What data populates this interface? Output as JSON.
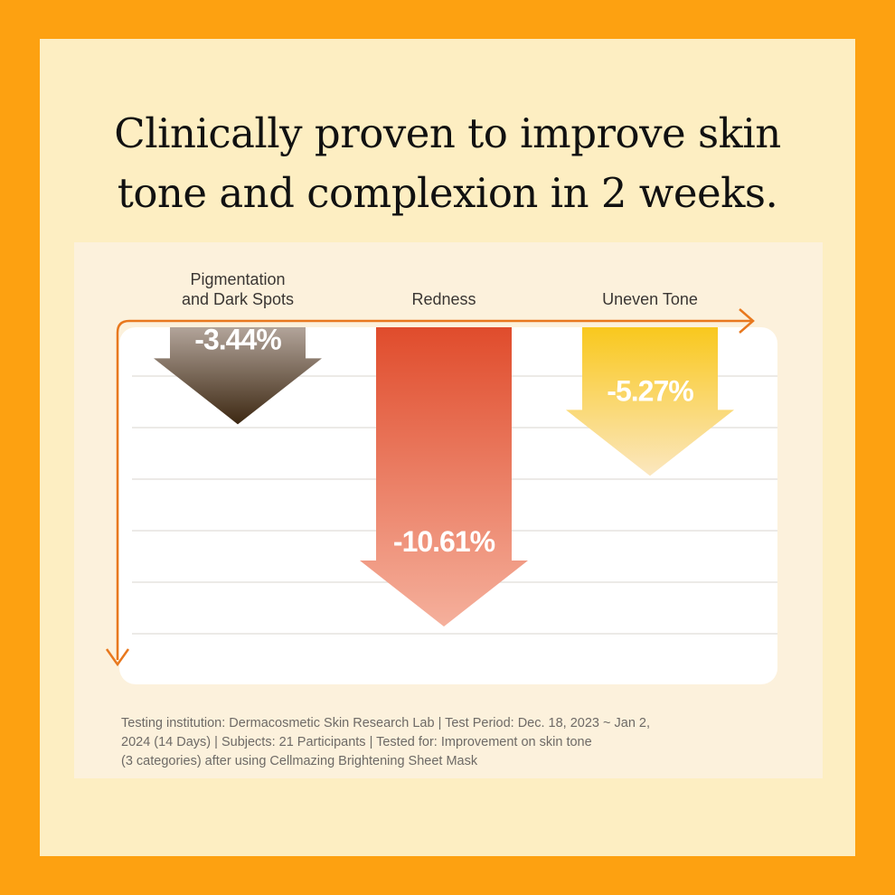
{
  "headline": {
    "line1": "Clinically proven to improve skin",
    "line2": "tone and complexion in 2 weeks."
  },
  "chart_data": {
    "type": "bar",
    "categories": [
      "Pigmentation and Dark Spots",
      "Redness",
      "Uneven Tone"
    ],
    "category_lines": [
      [
        "Pigmentation",
        "and Dark Spots"
      ],
      [
        "Redness"
      ],
      [
        "Uneven Tone"
      ]
    ],
    "values": [
      -3.44,
      -10.61,
      -5.27
    ],
    "value_labels": [
      "-3.44%",
      "-10.61%",
      "-5.27%"
    ],
    "colors": [
      [
        "#b2a49a",
        "#3d2812"
      ],
      [
        "#e04c2c",
        "#f5b09c"
      ],
      [
        "#f9c81d",
        "#fbe7c0"
      ]
    ],
    "accent": "#e8781e",
    "grid": true
  },
  "footnote": {
    "line1": "Testing institution: Dermacosmetic Skin Research Lab | Test Period: Dec. 18, 2023 ~ Jan 2,",
    "line2": "2024 (14 Days) | Subjects: 21 Participants | Tested for: Improvement on skin tone",
    "line3": "(3 categories) after using Cellmazing Brightening Sheet Mask"
  }
}
